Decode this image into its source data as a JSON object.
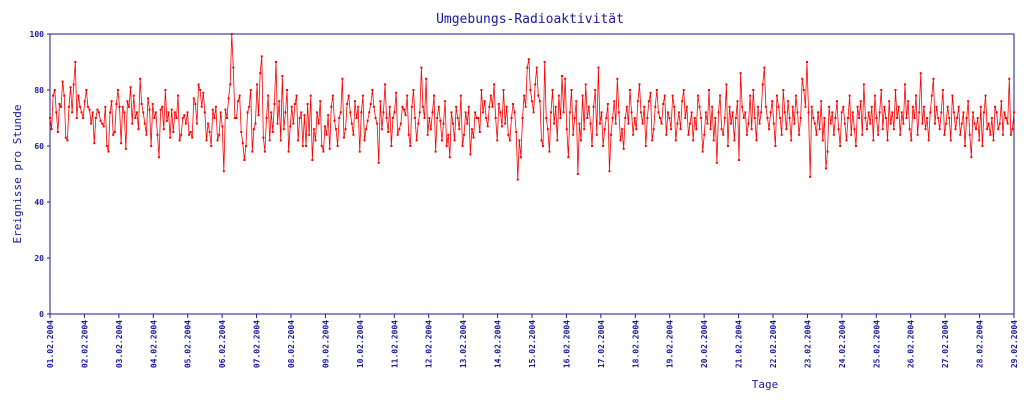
{
  "chart_data": {
    "type": "line",
    "title": "Umgebungs-Radioaktivität",
    "xlabel": "Tage",
    "ylabel": "Ereignisse pro Stunde",
    "ylim": [
      0,
      100
    ],
    "y_ticks": [
      0,
      20,
      40,
      60,
      80,
      100
    ],
    "x_tick_labels": [
      "01.02.2004",
      "02.02.2004",
      "03.02.2004",
      "04.02.2004",
      "05.02.2004",
      "06.02.2004",
      "07.02.2004",
      "08.02.2004",
      "09.02.2004",
      "10.02.2004",
      "11.02.2004",
      "12.02.2004",
      "13.02.2004",
      "14.02.2004",
      "15.02.2004",
      "16.02.2004",
      "17.02.2004",
      "18.02.2004",
      "19.02.2004",
      "20.02.2004",
      "21.02.2004",
      "22.02.2004",
      "23.02.2004",
      "24.02.2004",
      "25.02.2004",
      "26.02.2004",
      "27.02.2004",
      "28.02.2004",
      "29.02.2004"
    ],
    "grid": false,
    "legend": "none",
    "colors": {
      "series": "#ff0000",
      "axes": "#1a1a99",
      "background": "#ffffff"
    },
    "series": [
      {
        "x_start": "01.02.2004",
        "interval": "1h",
        "values": [
          70,
          66,
          78,
          80,
          72,
          65,
          75,
          74,
          83,
          78,
          63,
          62,
          74,
          81,
          72,
          82,
          90,
          70,
          78,
          74,
          72,
          70,
          76,
          80,
          74,
          73,
          68,
          72,
          61,
          70,
          73,
          72,
          69,
          68,
          67,
          74,
          60,
          58,
          72,
          76,
          64,
          65,
          75,
          80,
          74,
          61,
          74,
          72,
          59,
          76,
          74,
          81,
          68,
          78,
          70,
          72,
          66,
          84,
          75,
          72,
          68,
          64,
          77,
          73,
          60,
          75,
          70,
          72,
          64,
          56,
          73,
          74,
          66,
          80,
          69,
          72,
          63,
          73,
          65,
          72,
          70,
          78,
          62,
          64,
          70,
          71,
          68,
          72,
          64,
          65,
          63,
          77,
          75,
          68,
          82,
          80,
          74,
          79,
          72,
          62,
          68,
          65,
          60,
          73,
          70,
          74,
          62,
          64,
          72,
          67,
          51,
          73,
          70,
          77,
          82,
          100,
          88,
          70,
          70,
          76,
          78,
          65,
          61,
          55,
          60,
          72,
          74,
          80,
          58,
          66,
          68,
          82,
          71,
          86,
          92,
          63,
          58,
          70,
          78,
          62,
          72,
          65,
          75,
          90,
          68,
          76,
          62,
          85,
          66,
          72,
          80,
          58,
          67,
          74,
          68,
          75,
          78,
          62,
          70,
          72,
          60,
          71,
          60,
          75,
          64,
          78,
          55,
          66,
          62,
          72,
          68,
          76,
          60,
          58,
          67,
          64,
          71,
          59,
          74,
          78,
          69,
          66,
          60,
          70,
          72,
          84,
          63,
          66,
          75,
          78,
          72,
          68,
          64,
          76,
          70,
          74,
          58,
          72,
          78,
          62,
          66,
          69,
          72,
          75,
          80,
          74,
          70,
          68,
          54,
          76,
          66,
          72,
          82,
          70,
          65,
          74,
          60,
          70,
          72,
          79,
          64,
          66,
          68,
          74,
          73,
          71,
          78,
          64,
          60,
          74,
          80,
          70,
          62,
          68,
          72,
          88,
          74,
          70,
          84,
          64,
          70,
          66,
          72,
          78,
          58,
          70,
          74,
          69,
          62,
          68,
          76,
          60,
          64,
          56,
          72,
          68,
          62,
          74,
          70,
          66,
          78,
          60,
          64,
          72,
          68,
          74,
          57,
          66,
          63,
          72,
          70,
          70,
          65,
          80,
          72,
          76,
          70,
          67,
          74,
          78,
          74,
          82,
          70,
          62,
          75,
          72,
          67,
          80,
          68,
          74,
          64,
          62,
          70,
          75,
          72,
          65,
          48,
          62,
          56,
          70,
          78,
          74,
          88,
          91,
          80,
          76,
          72,
          82,
          88,
          78,
          76,
          62,
          60,
          90,
          70,
          66,
          58,
          72,
          80,
          68,
          74,
          62,
          78,
          70,
          85,
          72,
          84,
          66,
          56,
          72,
          80,
          64,
          70,
          76,
          50,
          68,
          62,
          78,
          66,
          82,
          70,
          74,
          68,
          60,
          74,
          80,
          64,
          88,
          68,
          72,
          60,
          66,
          70,
          75,
          51,
          64,
          70,
          76,
          68,
          84,
          72,
          62,
          66,
          59,
          70,
          74,
          68,
          80,
          72,
          64,
          70,
          66,
          76,
          82,
          72,
          68,
          74,
          60,
          70,
          76,
          79,
          62,
          66,
          74,
          80,
          72,
          70,
          68,
          75,
          78,
          64,
          72,
          70,
          66,
          78,
          74,
          62,
          68,
          72,
          66,
          76,
          80,
          70,
          74,
          64,
          68,
          72,
          62,
          70,
          66,
          78,
          74,
          70,
          58,
          64,
          72,
          68,
          80,
          66,
          74,
          62,
          70,
          54,
          72,
          78,
          66,
          64,
          70,
          82,
          60,
          74,
          68,
          72,
          62,
          70,
          76,
          55,
          86,
          74,
          70,
          72,
          64,
          68,
          78,
          66,
          80,
          70,
          62,
          74,
          68,
          72,
          82,
          88,
          74,
          70,
          66,
          72,
          76,
          68,
          60,
          78,
          74,
          70,
          64,
          80,
          72,
          66,
          76,
          70,
          62,
          74,
          68,
          78,
          72,
          64,
          70,
          84,
          80,
          74,
          90,
          72,
          49,
          74,
          70,
          68,
          64,
          72,
          66,
          76,
          62,
          70,
          52,
          58,
          74,
          68,
          72,
          64,
          70,
          76,
          66,
          60,
          72,
          74,
          68,
          62,
          70,
          78,
          64,
          72,
          66,
          60,
          74,
          70,
          76,
          64,
          82,
          70,
          66,
          72,
          68,
          74,
          62,
          78,
          70,
          64,
          72,
          80,
          66,
          74,
          70,
          62,
          76,
          68,
          72,
          66,
          80,
          70,
          74,
          64,
          72,
          68,
          82,
          70,
          76,
          66,
          62,
          74,
          70,
          78,
          64,
          72,
          86,
          68,
          74,
          66,
          70,
          62,
          72,
          78,
          84,
          68,
          74,
          70,
          66,
          72,
          80,
          64,
          68,
          74,
          70,
          62,
          78,
          72,
          66,
          70,
          74,
          64,
          68,
          72,
          60,
          70,
          76,
          64,
          56,
          72,
          68,
          66,
          70,
          62,
          74,
          60,
          72,
          78,
          66,
          68,
          64,
          70,
          62,
          74,
          72,
          66,
          68,
          76,
          64,
          72,
          70,
          68,
          84,
          64,
          66,
          72
        ]
      }
    ]
  }
}
